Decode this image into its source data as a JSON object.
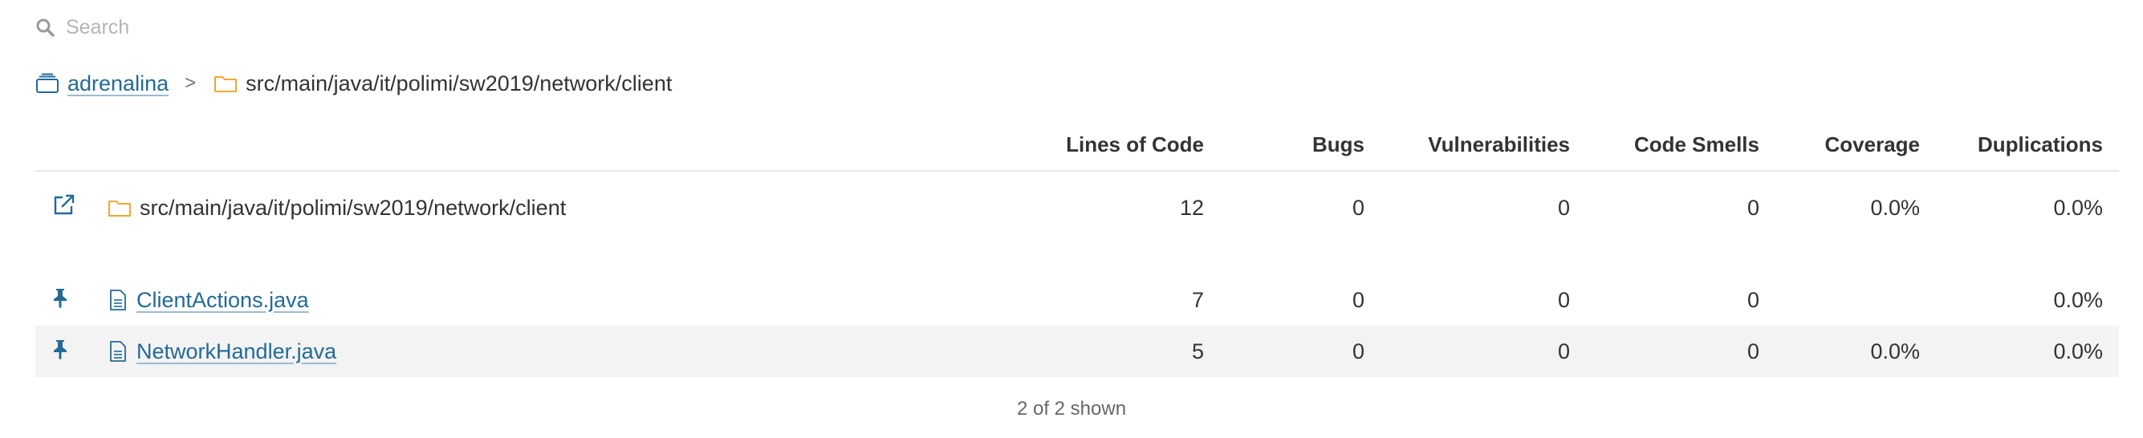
{
  "search": {
    "placeholder": "Search"
  },
  "breadcrumb": {
    "project": "adrenalina",
    "separator": ">",
    "path": "src/main/java/it/polimi/sw2019/network/client"
  },
  "table": {
    "columns": [
      "Lines of Code",
      "Bugs",
      "Vulnerabilities",
      "Code Smells",
      "Coverage",
      "Duplications"
    ],
    "base_row": {
      "name": "src/main/java/it/polimi/sw2019/network/client",
      "lines_of_code": "12",
      "bugs": "0",
      "vulnerabilities": "0",
      "code_smells": "0",
      "coverage": "0.0%",
      "duplications": "0.0%"
    },
    "files": [
      {
        "name": "ClientActions.java",
        "lines_of_code": "7",
        "bugs": "0",
        "vulnerabilities": "0",
        "code_smells": "0",
        "coverage": "",
        "duplications": "0.0%"
      },
      {
        "name": "NetworkHandler.java",
        "lines_of_code": "5",
        "bugs": "0",
        "vulnerabilities": "0",
        "code_smells": "0",
        "coverage": "0.0%",
        "duplications": "0.0%"
      }
    ]
  },
  "footer": {
    "shown_text": "2 of 2 shown"
  },
  "colors": {
    "link": "#236a97",
    "folder": "#f0a830",
    "icon": "#236a97",
    "alt_row": "#f3f3f3"
  },
  "icons": [
    "search-icon",
    "project-icon",
    "folder-icon",
    "open-external-icon",
    "pin-icon",
    "file-icon"
  ]
}
